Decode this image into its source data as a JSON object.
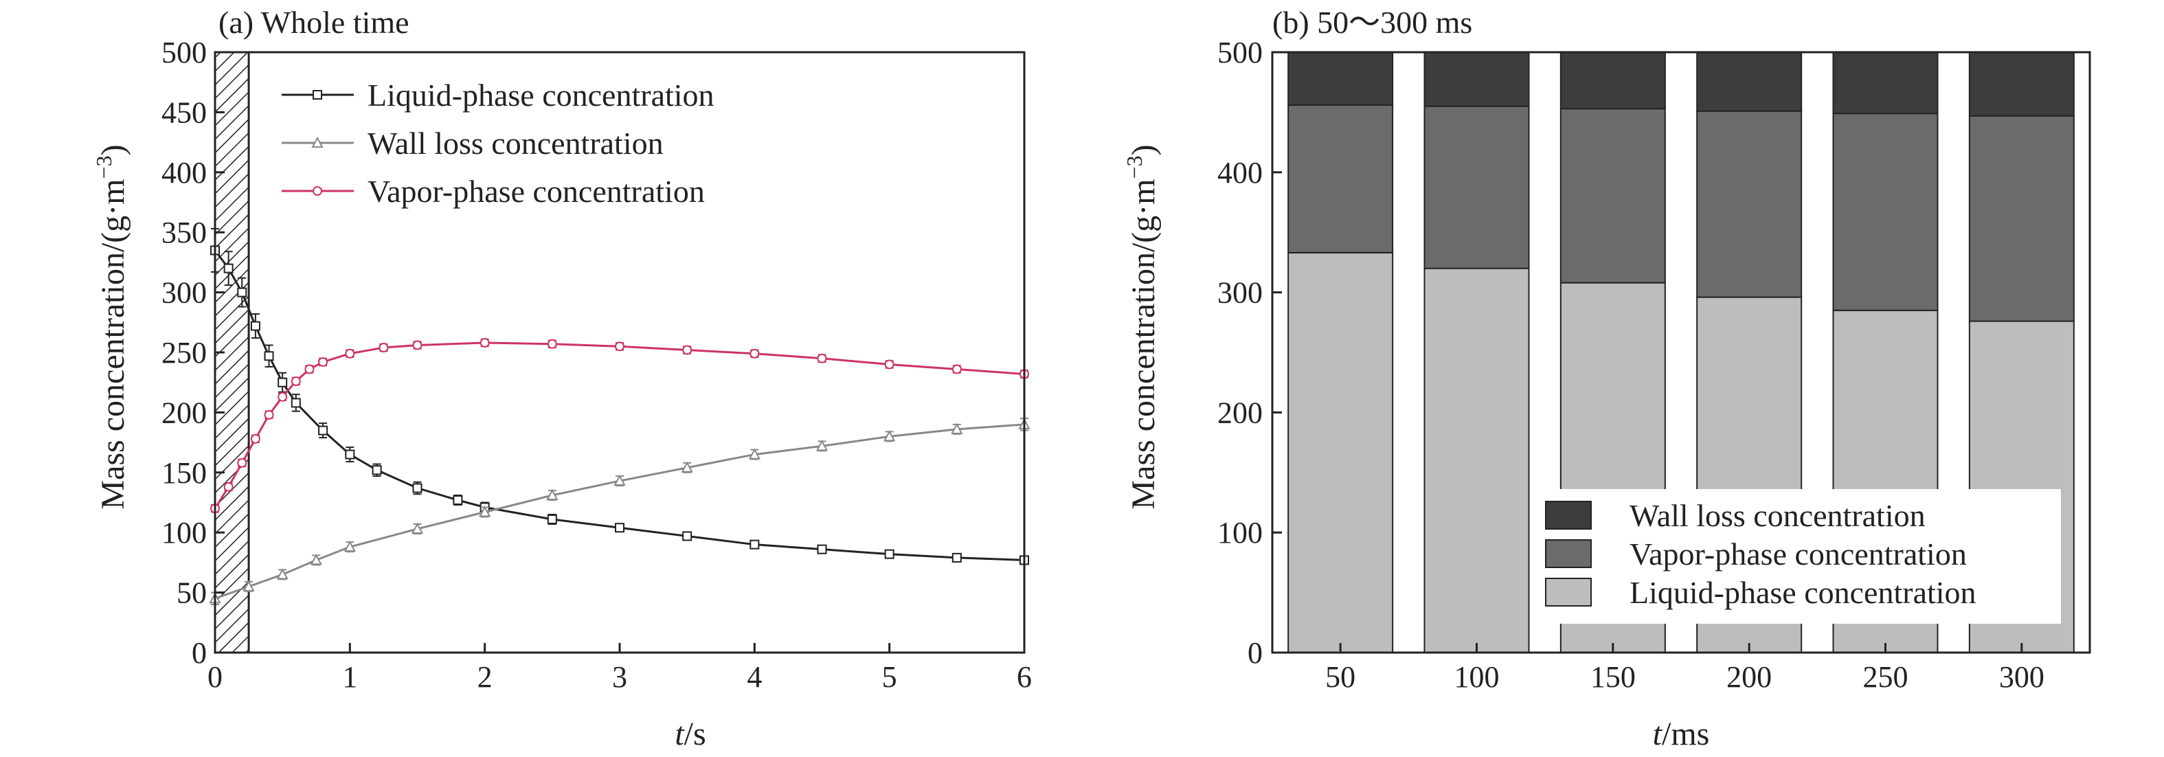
{
  "chart_data": [
    {
      "type": "line",
      "title": "(a) Whole time",
      "xlabel_var": "t",
      "xlabel_unit": "/s",
      "ylabel": "Mass concentration/(g·m",
      "ylabel_exp": "−3",
      "ylabel_close": ")",
      "xlim": [
        0,
        6
      ],
      "ylim": [
        0,
        500
      ],
      "xticks": [
        "0",
        "1",
        "2",
        "3",
        "4",
        "5",
        "6"
      ],
      "yticks": [
        "0",
        "50",
        "100",
        "150",
        "200",
        "250",
        "300",
        "350",
        "400",
        "450",
        "500"
      ],
      "shaded_region": [
        0,
        0.25
      ],
      "legend_position": "top-center",
      "series": [
        {
          "name": "Liquid-phase concentration",
          "color": "#222222",
          "marker": "square",
          "x": [
            0,
            0.1,
            0.2,
            0.3,
            0.4,
            0.5,
            0.6,
            0.8,
            1.0,
            1.2,
            1.5,
            1.8,
            2.0,
            2.5,
            3.0,
            3.5,
            4.0,
            4.5,
            5.0,
            5.5,
            6.0
          ],
          "y": [
            335,
            320,
            300,
            272,
            247,
            225,
            208,
            185,
            165,
            152,
            137,
            127,
            121,
            111,
            104,
            97,
            90,
            86,
            82,
            79,
            77
          ],
          "err": [
            18,
            14,
            12,
            10,
            9,
            8,
            7,
            6,
            6,
            5,
            5,
            4,
            4,
            4,
            3,
            3,
            3,
            3,
            3,
            3,
            3
          ]
        },
        {
          "name": "Wall loss concentration",
          "color": "#888888",
          "marker": "triangle",
          "x": [
            0,
            0.25,
            0.5,
            0.75,
            1.0,
            1.5,
            2.0,
            2.5,
            3.0,
            3.5,
            4.0,
            4.5,
            5.0,
            5.5,
            6.0
          ],
          "y": [
            45,
            55,
            65,
            77,
            88,
            103,
            117,
            131,
            143,
            154,
            165,
            172,
            180,
            186,
            190
          ],
          "err": [
            5,
            4,
            4,
            4,
            4,
            4,
            4,
            4,
            4,
            4,
            4,
            4,
            4,
            4,
            5
          ]
        },
        {
          "name": "Vapor-phase concentration",
          "color": "#cc3366",
          "marker": "circle",
          "x": [
            0,
            0.1,
            0.2,
            0.3,
            0.4,
            0.5,
            0.6,
            0.7,
            0.8,
            1.0,
            1.25,
            1.5,
            2.0,
            2.5,
            3.0,
            3.5,
            4.0,
            4.5,
            5.0,
            5.5,
            6.0
          ],
          "y": [
            120,
            138,
            158,
            178,
            198,
            213,
            226,
            236,
            242,
            249,
            254,
            256,
            258,
            257,
            255,
            252,
            249,
            245,
            240,
            236,
            232
          ],
          "err": [
            3,
            3,
            3,
            3,
            3,
            3,
            3,
            3,
            3,
            3,
            3,
            3,
            3,
            3,
            3,
            3,
            3,
            3,
            3,
            3,
            3
          ]
        }
      ]
    },
    {
      "type": "bar",
      "stacked": true,
      "title": "(b) 50～300 ms",
      "xlabel_var": "t",
      "xlabel_unit": "/ms",
      "ylabel": "Mass concentration/(g·m",
      "ylabel_exp": "−3",
      "ylabel_close": ")",
      "ylim": [
        0,
        500
      ],
      "yticks": [
        "0",
        "100",
        "200",
        "300",
        "400",
        "500"
      ],
      "categories": [
        "50",
        "100",
        "150",
        "200",
        "250",
        "300"
      ],
      "legend_position": "bottom-right",
      "series": [
        {
          "name": "Liquid-phase concentration",
          "color": "#bdbdbd",
          "values": [
            333,
            320,
            308,
            296,
            285,
            276
          ]
        },
        {
          "name": "Vapor-phase concentration",
          "color": "#6b6b6b",
          "values": [
            123,
            135,
            145,
            155,
            164,
            171
          ]
        },
        {
          "name": "Wall loss concentration",
          "color": "#3d3d3d",
          "values": [
            44,
            45,
            47,
            49,
            51,
            53
          ]
        }
      ]
    }
  ]
}
